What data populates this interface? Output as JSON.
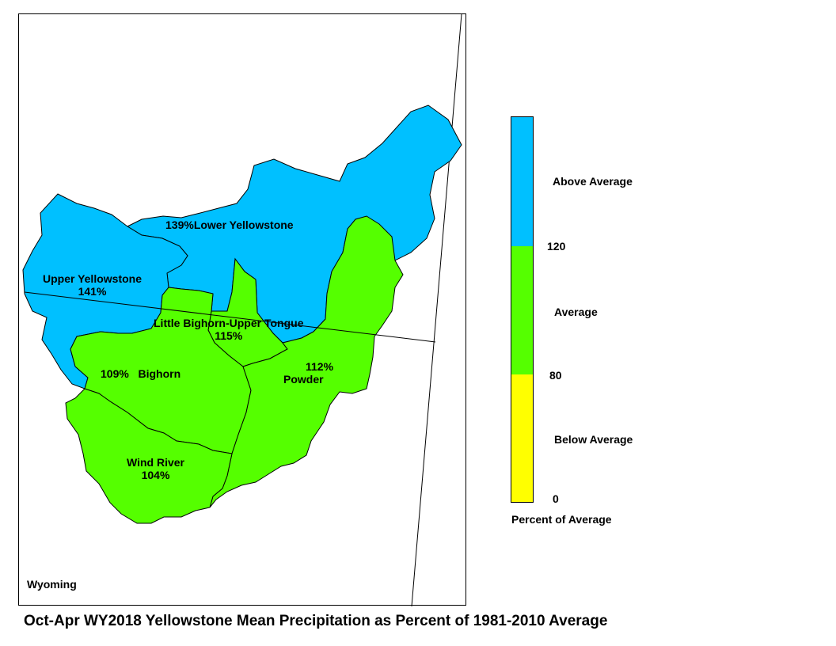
{
  "map": {
    "state_label": "Wyoming",
    "title": "Oct-Apr WY2018 Yellowstone Mean Precipitation as Percent of 1981-2010 Average",
    "basins": [
      {
        "id": "lower-yellowstone",
        "name": "Lower Yellowstone",
        "percent": "139%",
        "category": "Above Average",
        "color": "#00C0FF"
      },
      {
        "id": "upper-yellowstone",
        "name": "Upper Yellowstone",
        "percent": "141%",
        "category": "Above Average",
        "color": "#00C0FF"
      },
      {
        "id": "little-bighorn-upper-tongue",
        "name": "Little Bighorn-Upper Tongue",
        "percent": "115%",
        "category": "Average",
        "color": "#55FF00"
      },
      {
        "id": "bighorn",
        "name": "Bighorn",
        "percent": "109%",
        "category": "Average",
        "color": "#55FF00"
      },
      {
        "id": "powder",
        "name": "Powder",
        "percent": "112%",
        "category": "Average",
        "color": "#55FF00"
      },
      {
        "id": "wind-river",
        "name": "Wind River",
        "percent": "104%",
        "category": "Average",
        "color": "#55FF00"
      }
    ]
  },
  "legend": {
    "title": "Percent of Average",
    "classes": [
      {
        "label": "Above Average",
        "color": "#00C0FF",
        "min": 120
      },
      {
        "label": "Average",
        "color": "#55FF00",
        "min": 80,
        "max": 120
      },
      {
        "label": "Below Average",
        "color": "#FFFF00",
        "min": 0,
        "max": 80
      }
    ],
    "breaks": [
      "120",
      "80",
      "0"
    ]
  }
}
